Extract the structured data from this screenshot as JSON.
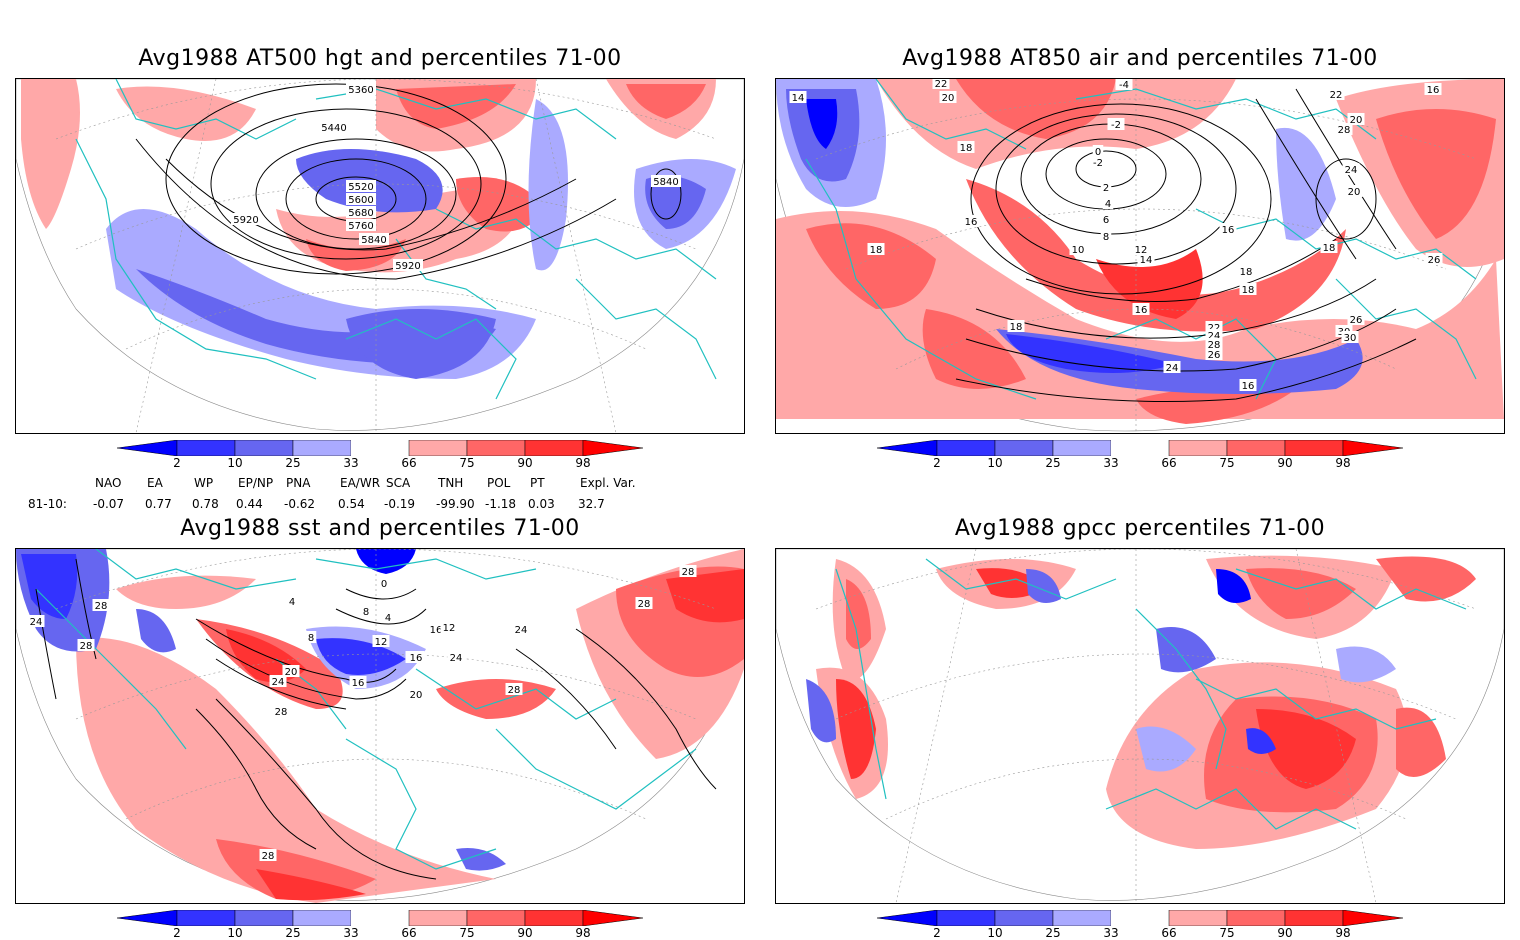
{
  "panels": {
    "hgt": {
      "title": "Avg1988 AT500 hgt and percentiles 71-00",
      "contour_labels": [
        "5360",
        "5440",
        "5520",
        "5600",
        "5680",
        "5760",
        "5840",
        "5920",
        "5920",
        "5840"
      ]
    },
    "air": {
      "title": "Avg1988 AT850 air and percentiles 71-00",
      "contour_labels": [
        "22",
        "20",
        "14",
        "18",
        "16",
        "18",
        "-4",
        "-2",
        "0",
        "-2",
        "2",
        "4",
        "6",
        "8",
        "10",
        "12",
        "14",
        "16",
        "22",
        "24",
        "28",
        "26",
        "24",
        "22",
        "20",
        "18",
        "16",
        "18",
        "20",
        "24",
        "28",
        "26",
        "30",
        "30",
        "26",
        "18",
        "16",
        "18",
        "16"
      ]
    },
    "sst": {
      "title": "Avg1988 sst and percentiles 71-00",
      "contour_labels": [
        "24",
        "28",
        "28",
        "16",
        "4",
        "8",
        "12",
        "16",
        "20",
        "24",
        "28",
        "16",
        "8",
        "4",
        "0",
        "12",
        "16",
        "20",
        "24",
        "24",
        "28",
        "28",
        "28",
        "28"
      ]
    },
    "gpcc": {
      "title": "Avg1988 gpcc percentiles 71-00"
    }
  },
  "legend": {
    "labels": [
      "2",
      "10",
      "25",
      "33",
      "66",
      "75",
      "90",
      "98"
    ],
    "colors": {
      "lt2": "#0000ff",
      "b2_10": "#3333ff",
      "b10_25": "#6666f0",
      "b25_33": "#aaaaff",
      "b33_66": "#ffffff",
      "b66_75": "#ffa8a8",
      "b75_90": "#ff6666",
      "b90_98": "#ff3333",
      "gt98": "#ff0000"
    }
  },
  "indices": {
    "headers": [
      "NAO",
      "EA",
      "WP",
      "EP/NP",
      "PNA",
      "EA/WR",
      "SCA",
      "TNH",
      "POL",
      "PT",
      "Expl. Var."
    ],
    "row_label": "81-10:",
    "values": [
      "-0.07",
      "0.77",
      "0.78",
      "0.44",
      "-0.62",
      "0.54",
      "-0.19",
      "-99.90",
      "-1.18",
      "0.03",
      "32.7"
    ]
  },
  "style": {
    "coast_color": "#20c0c0",
    "grid_color": "#999999"
  }
}
